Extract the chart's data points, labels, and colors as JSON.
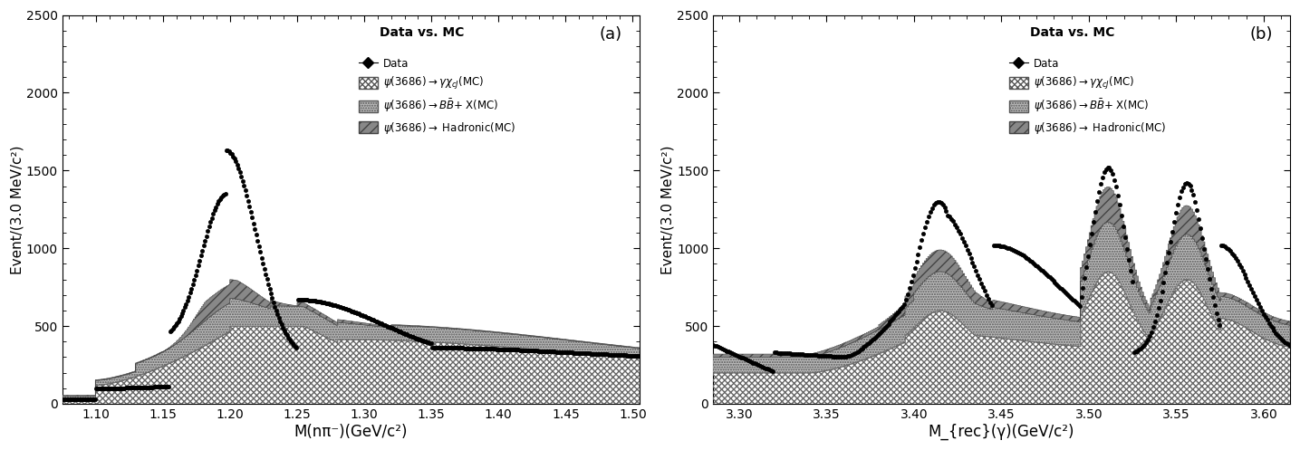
{
  "panel_a": {
    "xlabel": "M(nπ⁻)(GeV/c²)",
    "ylabel": "Event/(3.0 MeV/c²)",
    "xlim": [
      1.075,
      1.505
    ],
    "ylim": [
      0,
      2500
    ],
    "xticks": [
      1.1,
      1.15,
      1.2,
      1.25,
      1.3,
      1.35,
      1.4,
      1.45,
      1.5
    ],
    "yticks": [
      0,
      500,
      1000,
      1500,
      2000,
      2500
    ],
    "label": "(a)",
    "title": "Data vs. MC"
  },
  "panel_b": {
    "xlabel": "M_{rec}(γ)(GeV/c²)",
    "ylabel": "Event/(3.0 MeV/c²)",
    "xlim": [
      3.285,
      3.615
    ],
    "ylim": [
      0,
      2500
    ],
    "xticks": [
      3.3,
      3.35,
      3.4,
      3.45,
      3.5,
      3.55,
      3.6
    ],
    "yticks": [
      0,
      500,
      1000,
      1500,
      2000,
      2500
    ],
    "label": "(b)",
    "title": "Data vs. MC"
  }
}
